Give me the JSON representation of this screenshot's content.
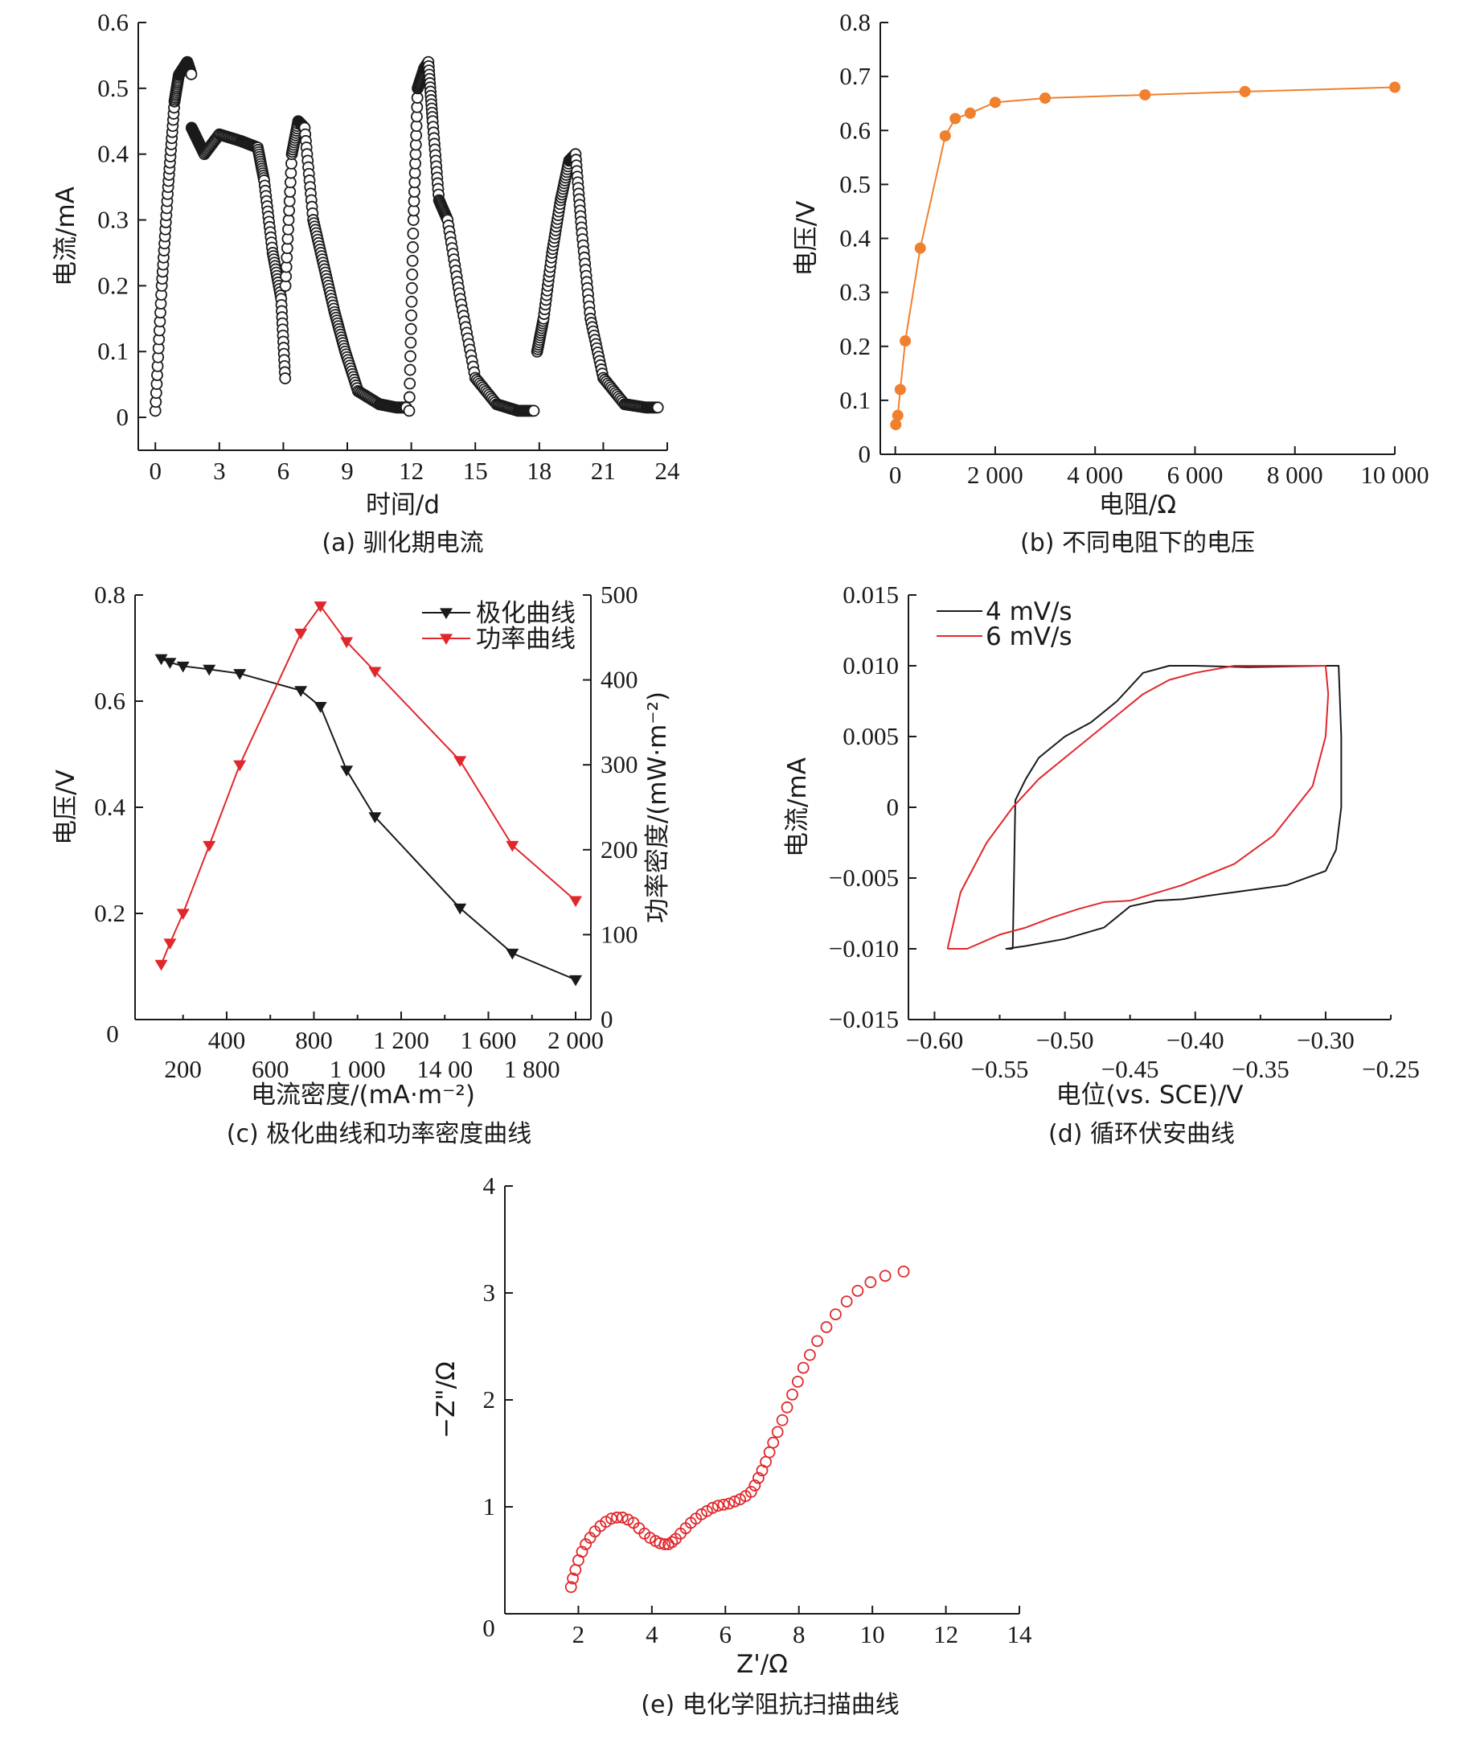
{
  "chart_data": [
    {
      "id": "a",
      "type": "scatter",
      "caption": "(a) 驯化期电流",
      "xlabel": "时间/d",
      "ylabel": "电流/mA",
      "xlim": [
        -0.8,
        24
      ],
      "ylim": [
        -0.05,
        0.6
      ],
      "xticks": [
        0,
        3,
        6,
        9,
        12,
        15,
        18,
        21,
        24
      ],
      "yticks": [
        0,
        0.1,
        0.2,
        0.3,
        0.4,
        0.5,
        0.6
      ],
      "marker": "open-circle",
      "color": "#1a1a1a",
      "segments": [
        {
          "x": [
            0,
            0.3,
            0.6,
            0.9,
            1.1,
            1.3,
            1.5,
            1.7
          ],
          "y": [
            0.01,
            0.2,
            0.35,
            0.48,
            0.52,
            0.53,
            0.54,
            0.52
          ]
        },
        {
          "x": [
            1.7,
            2.0,
            2.3,
            3.0,
            4.0,
            4.8,
            5.1,
            5.5,
            5.9,
            6.1
          ],
          "y": [
            0.44,
            0.42,
            0.4,
            0.43,
            0.42,
            0.41,
            0.36,
            0.25,
            0.18,
            0.05
          ]
        },
        {
          "x": [
            6.1,
            6.4,
            6.7,
            7.0,
            7.4,
            7.9,
            8.4,
            8.9,
            9.5,
            10.5,
            11.3,
            11.8
          ],
          "y": [
            0.2,
            0.4,
            0.45,
            0.44,
            0.3,
            0.23,
            0.16,
            0.1,
            0.04,
            0.02,
            0.015,
            0.015
          ]
        },
        {
          "x": [
            11.9,
            12.1,
            12.3,
            12.6,
            12.8,
            13.0,
            13.3,
            13.7,
            14.3,
            15.0,
            16.0,
            17.0,
            17.8
          ],
          "y": [
            0.01,
            0.3,
            0.5,
            0.53,
            0.54,
            0.45,
            0.33,
            0.3,
            0.18,
            0.06,
            0.02,
            0.01,
            0.01
          ]
        },
        {
          "x": [
            17.9,
            18.2,
            18.6,
            19.0,
            19.4,
            19.7,
            20.0,
            20.4,
            21.0,
            22.0,
            23.0,
            23.6
          ],
          "y": [
            0.1,
            0.15,
            0.25,
            0.33,
            0.39,
            0.4,
            0.28,
            0.15,
            0.06,
            0.02,
            0.015,
            0.015
          ]
        }
      ]
    },
    {
      "id": "b",
      "type": "line",
      "caption": "(b) 不同电阻下的电压",
      "xlabel": "电阻/Ω",
      "ylabel": "电压/V",
      "xlim": [
        -300,
        10000
      ],
      "ylim": [
        0,
        0.8
      ],
      "xticks": [
        0,
        2000,
        4000,
        6000,
        8000,
        10000
      ],
      "xtick_labels": [
        "0",
        "2 000",
        "4 000",
        "6 000",
        "8 000",
        "10 000"
      ],
      "yticks": [
        0,
        0.1,
        0.2,
        0.3,
        0.4,
        0.5,
        0.6,
        0.7,
        0.8
      ],
      "color": "#f07f2e",
      "x": [
        10,
        50,
        100,
        200,
        500,
        1000,
        1200,
        1500,
        2000,
        3000,
        5000,
        7000,
        10000
      ],
      "y": [
        0.055,
        0.072,
        0.12,
        0.21,
        0.382,
        0.59,
        0.622,
        0.632,
        0.652,
        0.66,
        0.666,
        0.672,
        0.68
      ]
    },
    {
      "id": "c",
      "type": "line",
      "caption": "(c) 极化曲线和功率密度曲线",
      "xlabel": "电流密度/(mA·m⁻²)",
      "ylabel": "电压/V",
      "ylabel2": "功率密度/(mW·m⁻²)",
      "xlim": [
        -20,
        2070
      ],
      "ylim": [
        0,
        0.8
      ],
      "ylim2": [
        0,
        500
      ],
      "xticks_top": [
        400,
        800,
        1200,
        1600,
        2000
      ],
      "xtick_labels_top": [
        "400",
        "800",
        "1 200",
        "1 600",
        "2 000"
      ],
      "xticks_bottom": [
        200,
        600,
        1000,
        1400,
        1800
      ],
      "xtick_labels_bottom": [
        "200",
        "600",
        "1 000",
        "14 00",
        "1 800"
      ],
      "origin_label": "0",
      "yticks": [
        0.2,
        0.4,
        0.6,
        0.8
      ],
      "yticks2": [
        0,
        100,
        200,
        300,
        400,
        500
      ],
      "legend": [
        {
          "name": "极化曲线",
          "color": "#1a1a1a"
        },
        {
          "name": "功率曲线",
          "color": "#e0282c"
        }
      ],
      "series": [
        {
          "name": "极化曲线",
          "color": "#1a1a1a",
          "axis": "left",
          "x": [
            100,
            140,
            200,
            320,
            460,
            740,
            830,
            950,
            1080,
            1470,
            1710,
            2000
          ],
          "y": [
            0.68,
            0.673,
            0.666,
            0.66,
            0.652,
            0.62,
            0.59,
            0.47,
            0.382,
            0.21,
            0.125,
            0.075
          ]
        },
        {
          "name": "功率曲线",
          "color": "#e0282c",
          "axis": "right",
          "x": [
            100,
            140,
            200,
            320,
            460,
            740,
            830,
            950,
            1080,
            1470,
            1710,
            2000
          ],
          "y": [
            65,
            90,
            125,
            205,
            300,
            455,
            487,
            445,
            410,
            305,
            205,
            140
          ]
        }
      ]
    },
    {
      "id": "d",
      "type": "line",
      "caption": "(d) 循环伏安曲线",
      "xlabel": "电位(vs. SCE)/V",
      "ylabel": "电流/mA",
      "xlim": [
        -0.62,
        -0.25
      ],
      "ylim": [
        -0.015,
        0.015
      ],
      "xticks_top": [
        -0.6,
        -0.5,
        -0.4,
        -0.3
      ],
      "xtick_labels_top": [
        "−0.60",
        "−0.50",
        "−0.40",
        "−0.30"
      ],
      "xticks_bottom": [
        -0.55,
        -0.45,
        -0.35,
        -0.25
      ],
      "xtick_labels_bottom": [
        "−0.55",
        "−0.45",
        "−0.35",
        "−0.25"
      ],
      "yticks": [
        -0.015,
        -0.01,
        -0.005,
        0,
        0.005,
        0.01,
        0.015
      ],
      "ytick_labels": [
        "−0.015",
        "−0.010",
        "−0.005",
        "0",
        "0.005",
        "0.010",
        "0.015"
      ],
      "legend": [
        {
          "name": "4 mV/s",
          "color": "#1a1a1a"
        },
        {
          "name": "6 mV/s",
          "color": "#e0282c"
        }
      ],
      "series": [
        {
          "name": "4 mV/s",
          "color": "#1a1a1a",
          "x": [
            -0.54,
            -0.538,
            -0.53,
            -0.52,
            -0.5,
            -0.48,
            -0.46,
            -0.44,
            -0.42,
            -0.4,
            -0.36,
            -0.3,
            -0.29,
            -0.288,
            -0.288,
            -0.292,
            -0.3,
            -0.33,
            -0.37,
            -0.41,
            -0.43,
            -0.45,
            -0.47,
            -0.5,
            -0.53,
            -0.545,
            -0.54
          ],
          "y": [
            -0.01,
            0.0005,
            0.002,
            0.0035,
            0.005,
            0.006,
            0.0075,
            0.0095,
            0.01,
            0.01,
            0.0099,
            0.01,
            0.01,
            0.005,
            0.0,
            -0.003,
            -0.0045,
            -0.0055,
            -0.006,
            -0.0065,
            -0.0066,
            -0.007,
            -0.0085,
            -0.0093,
            -0.0098,
            -0.01,
            -0.01
          ]
        },
        {
          "name": "6 mV/s",
          "color": "#e0282c",
          "x": [
            -0.59,
            -0.58,
            -0.56,
            -0.54,
            -0.52,
            -0.5,
            -0.48,
            -0.46,
            -0.44,
            -0.42,
            -0.4,
            -0.37,
            -0.34,
            -0.3,
            -0.298,
            -0.3,
            -0.31,
            -0.34,
            -0.37,
            -0.41,
            -0.45,
            -0.47,
            -0.49,
            -0.51,
            -0.53,
            -0.55,
            -0.575,
            -0.59
          ],
          "y": [
            -0.01,
            -0.006,
            -0.0025,
            0.0,
            0.002,
            0.0035,
            0.005,
            0.0065,
            0.008,
            0.009,
            0.0095,
            0.01,
            0.01,
            0.01,
            0.008,
            0.005,
            0.0015,
            -0.002,
            -0.004,
            -0.0055,
            -0.0066,
            -0.0067,
            -0.0072,
            -0.0078,
            -0.0085,
            -0.009,
            -0.01,
            -0.01
          ]
        }
      ]
    },
    {
      "id": "e",
      "type": "scatter",
      "caption": "(e) 电化学阻抗扫描曲线",
      "xlabel": "Z'/Ω",
      "ylabel": "−Z\"/Ω",
      "xlim": [
        0,
        14
      ],
      "ylim": [
        0,
        4
      ],
      "xticks": [
        2,
        4,
        6,
        8,
        10,
        12,
        14
      ],
      "yticks": [
        1,
        2,
        3,
        4
      ],
      "origin_label": "0",
      "marker": "open-circle",
      "color": "#e0282c",
      "x": [
        1.8,
        1.85,
        1.92,
        2.0,
        2.1,
        2.2,
        2.32,
        2.45,
        2.6,
        2.75,
        2.9,
        3.05,
        3.2,
        3.35,
        3.5,
        3.65,
        3.8,
        3.95,
        4.1,
        4.22,
        4.35,
        4.45,
        4.55,
        4.65,
        4.78,
        4.92,
        5.06,
        5.2,
        5.35,
        5.5,
        5.65,
        5.8,
        5.95,
        6.1,
        6.25,
        6.4,
        6.55,
        6.7,
        6.8,
        6.9,
        7.0,
        7.1,
        7.2,
        7.3,
        7.42,
        7.55,
        7.68,
        7.82,
        7.97,
        8.12,
        8.3,
        8.5,
        8.75,
        9.0,
        9.3,
        9.6,
        9.95,
        10.35,
        10.85
      ],
      "y": [
        0.25,
        0.33,
        0.41,
        0.5,
        0.58,
        0.65,
        0.71,
        0.77,
        0.82,
        0.86,
        0.89,
        0.9,
        0.9,
        0.88,
        0.85,
        0.8,
        0.75,
        0.71,
        0.68,
        0.66,
        0.65,
        0.65,
        0.67,
        0.7,
        0.75,
        0.8,
        0.85,
        0.89,
        0.93,
        0.96,
        0.99,
        1.01,
        1.02,
        1.03,
        1.05,
        1.07,
        1.1,
        1.14,
        1.2,
        1.27,
        1.34,
        1.42,
        1.51,
        1.6,
        1.7,
        1.81,
        1.93,
        2.05,
        2.17,
        2.3,
        2.42,
        2.55,
        2.68,
        2.8,
        2.92,
        3.02,
        3.1,
        3.16,
        3.2
      ]
    }
  ]
}
